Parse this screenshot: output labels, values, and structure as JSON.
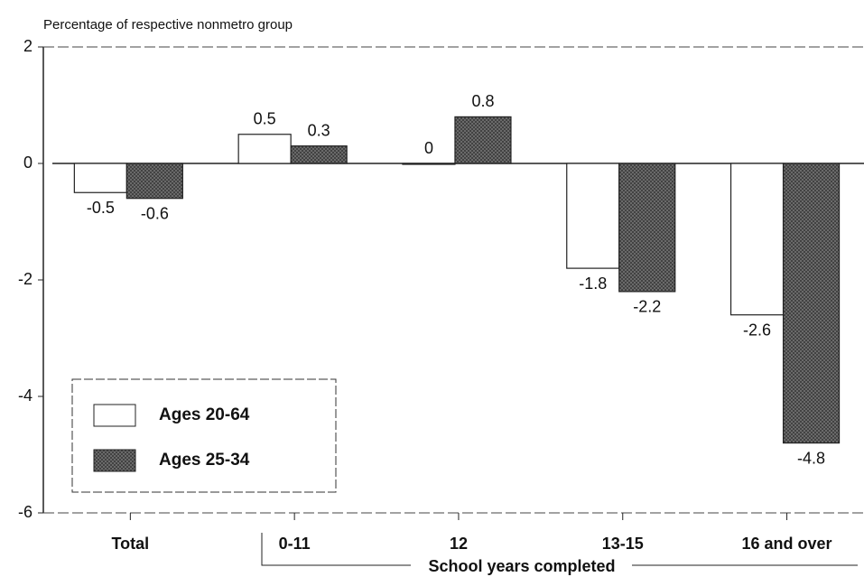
{
  "chart_data": {
    "type": "bar",
    "y_label": "Percentage of respective nonmetro group",
    "x_label": "School years completed",
    "categories": [
      "Total",
      "0-11",
      "12",
      "13-15",
      "16 and over"
    ],
    "series": [
      {
        "name": "Ages 20-64",
        "color": "#ffffff",
        "values": [
          -0.5,
          0.5,
          0,
          -1.8,
          -2.6
        ]
      },
      {
        "name": "Ages 25-34",
        "color": "#6a6a6a",
        "values": [
          -0.6,
          0.3,
          0.8,
          -2.2,
          -4.8
        ]
      }
    ],
    "ylim": [
      -6,
      2
    ],
    "yticks": [
      -6,
      -4,
      -2,
      0,
      2
    ],
    "legend": "lower left"
  }
}
